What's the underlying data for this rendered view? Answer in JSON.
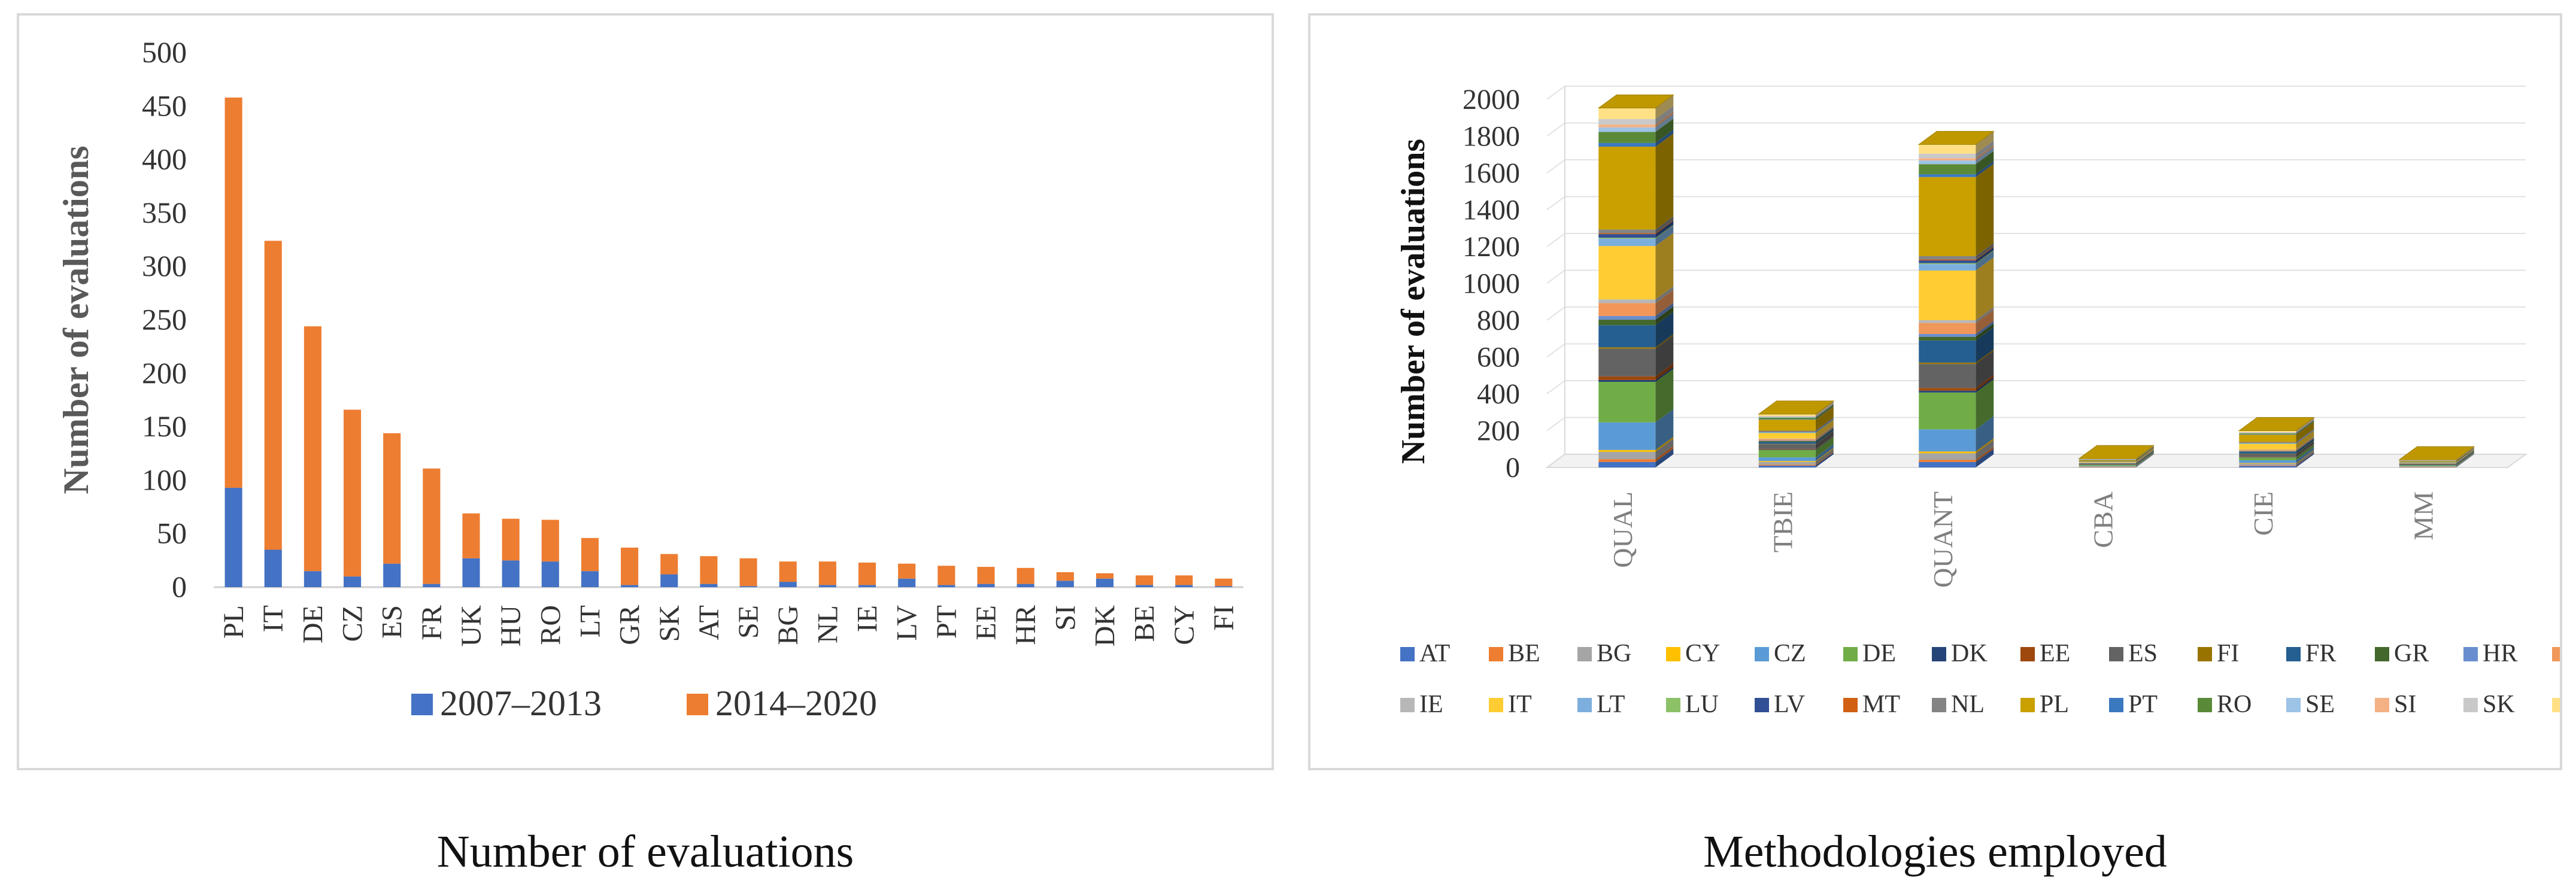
{
  "captions": {
    "left": "Number of evaluations",
    "right": "Methodologies employed"
  },
  "colors": {
    "AT": "#4472c4",
    "BE": "#ed7d31",
    "BG": "#a5a5a5",
    "CY": "#ffc000",
    "CZ": "#5b9bd5",
    "DE": "#70ad47",
    "DK": "#264478",
    "EE": "#9e480e",
    "ES": "#636363",
    "FI": "#997300",
    "FR": "#255e91",
    "GR": "#43682b",
    "HR": "#698ed0",
    "HU": "#f1975a",
    "IE": "#b7b7b7",
    "IT": "#ffcd33",
    "LT": "#7cafdd",
    "LU": "#8cc168",
    "LV": "#314f94",
    "MT": "#d26012",
    "NL": "#848484",
    "PL": "#c9a000",
    "PT": "#3a78c0",
    "RO": "#5a8a38",
    "SE": "#9dc3e6",
    "SI": "#f4b183",
    "SK": "#c9c9c9",
    "UK": "#ffe085",
    "series2007": "#4472c4",
    "series2014": "#ed7d31"
  },
  "chart_data": [
    {
      "type": "bar",
      "stacked": true,
      "title": "Number of evaluations",
      "xlabel": "",
      "ylabel": "Number of evaluations",
      "ylim": [
        0,
        500
      ],
      "yticks": [
        "0",
        "50",
        "100",
        "150",
        "200",
        "250",
        "300",
        "350",
        "400",
        "450",
        "500"
      ],
      "legend_position": "bottom",
      "categories": [
        "PL",
        "IT",
        "DE",
        "CZ",
        "ES",
        "FR",
        "UK",
        "HU",
        "RO",
        "LT",
        "GR",
        "SK",
        "AT",
        "SE",
        "BG",
        "NL",
        "IE",
        "LV",
        "PT",
        "EE",
        "HR",
        "SI",
        "DK",
        "BE",
        "CY",
        "FI"
      ],
      "series": [
        {
          "name": "2007–2013",
          "color_key": "series2007",
          "values": [
            93,
            35,
            15,
            10,
            22,
            3,
            27,
            25,
            24,
            15,
            2,
            12,
            3,
            1,
            5,
            2,
            2,
            8,
            2,
            3,
            3,
            6,
            8,
            2,
            2,
            1
          ]
        },
        {
          "name": "2014–2020",
          "color_key": "series2014",
          "values": [
            365,
            289,
            229,
            156,
            122,
            108,
            42,
            39,
            39,
            31,
            35,
            19,
            26,
            26,
            19,
            22,
            21,
            14,
            18,
            16,
            15,
            8,
            5,
            9,
            9,
            7
          ]
        }
      ]
    },
    {
      "type": "bar",
      "stacked": true,
      "three_d": true,
      "title": "Methodologies employed",
      "xlabel": "",
      "ylabel": "Number of evaluations",
      "ylim": [
        0,
        2000
      ],
      "yticks": [
        "0",
        "200",
        "400",
        "600",
        "800",
        "1000",
        "1200",
        "1400",
        "1600",
        "1800",
        "2000"
      ],
      "legend_position": "bottom",
      "categories": [
        "QUAL",
        "TBIE",
        "QUANT",
        "CBA",
        "CIE",
        "MM"
      ],
      "series": [
        {
          "name": "AT",
          "values": [
            30,
            10,
            30,
            2,
            8,
            2
          ]
        },
        {
          "name": "BE",
          "values": [
            15,
            5,
            12,
            1,
            3,
            1
          ]
        },
        {
          "name": "BG",
          "values": [
            40,
            15,
            35,
            3,
            10,
            2
          ]
        },
        {
          "name": "CY",
          "values": [
            10,
            5,
            10,
            1,
            3,
            1
          ]
        },
        {
          "name": "CZ",
          "values": [
            150,
            20,
            120,
            3,
            15,
            3
          ]
        },
        {
          "name": "DE",
          "values": [
            220,
            40,
            200,
            5,
            15,
            4
          ]
        },
        {
          "name": "DK",
          "values": [
            10,
            3,
            10,
            1,
            2,
            1
          ]
        },
        {
          "name": "EE",
          "values": [
            20,
            3,
            15,
            1,
            2,
            1
          ]
        },
        {
          "name": "ES",
          "values": [
            150,
            25,
            130,
            3,
            15,
            3
          ]
        },
        {
          "name": "FI",
          "values": [
            8,
            2,
            8,
            0,
            2,
            0
          ]
        },
        {
          "name": "FR",
          "values": [
            120,
            10,
            120,
            2,
            10,
            2
          ]
        },
        {
          "name": "GR",
          "values": [
            30,
            5,
            20,
            1,
            3,
            1
          ]
        },
        {
          "name": "HR",
          "values": [
            20,
            3,
            15,
            1,
            2,
            1
          ]
        },
        {
          "name": "HU",
          "values": [
            70,
            8,
            60,
            2,
            6,
            1
          ]
        },
        {
          "name": "IE",
          "values": [
            20,
            3,
            15,
            1,
            2,
            1
          ]
        },
        {
          "name": "IT",
          "values": [
            290,
            30,
            270,
            4,
            30,
            3
          ]
        },
        {
          "name": "LT",
          "values": [
            40,
            5,
            35,
            1,
            4,
            1
          ]
        },
        {
          "name": "LU",
          "values": [
            5,
            1,
            5,
            0,
            1,
            0
          ]
        },
        {
          "name": "LV",
          "values": [
            20,
            3,
            15,
            1,
            2,
            1
          ]
        },
        {
          "name": "MT",
          "values": [
            5,
            1,
            5,
            0,
            1,
            0
          ]
        },
        {
          "name": "NL",
          "values": [
            20,
            3,
            18,
            1,
            2,
            1
          ]
        },
        {
          "name": "PL",
          "values": [
            450,
            60,
            430,
            6,
            40,
            5
          ]
        },
        {
          "name": "PT",
          "values": [
            20,
            3,
            15,
            1,
            2,
            1
          ]
        },
        {
          "name": "RO",
          "values": [
            60,
            8,
            55,
            2,
            5,
            1
          ]
        },
        {
          "name": "SE",
          "values": [
            25,
            3,
            20,
            1,
            2,
            1
          ]
        },
        {
          "name": "SI",
          "values": [
            15,
            2,
            12,
            1,
            2,
            1
          ]
        },
        {
          "name": "SK",
          "values": [
            30,
            4,
            25,
            1,
            3,
            1
          ]
        },
        {
          "name": "UK",
          "values": [
            60,
            10,
            50,
            2,
            8,
            2
          ]
        }
      ]
    }
  ]
}
